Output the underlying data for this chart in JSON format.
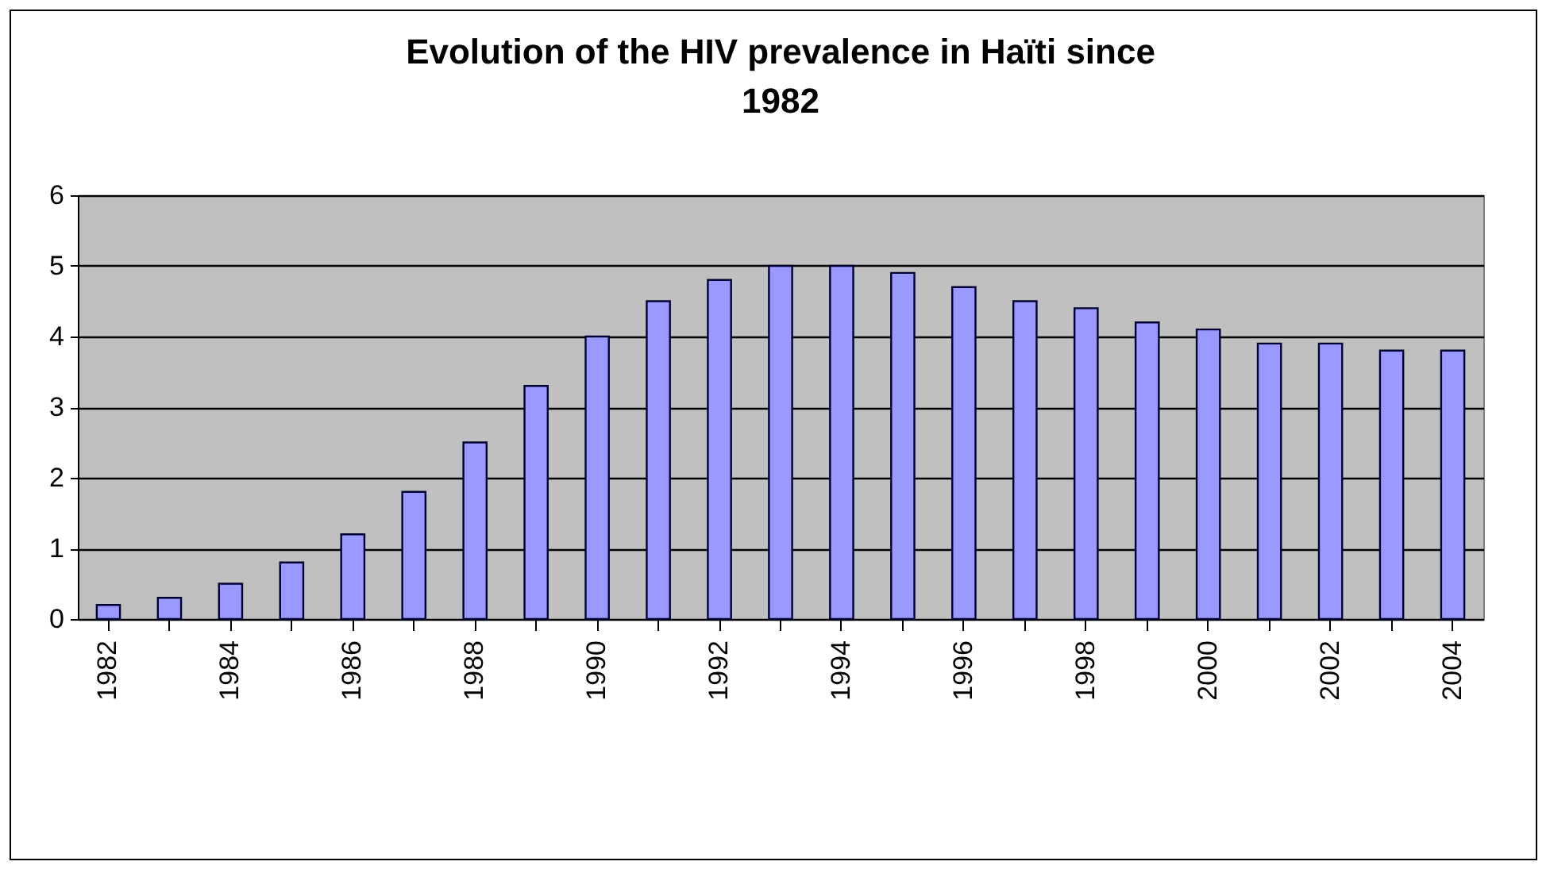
{
  "chart_data": {
    "type": "bar",
    "title": "Evolution of the HIV prevalence in Haïti  since 1982",
    "categories": [
      "1982",
      null,
      "1984",
      null,
      "1986",
      null,
      "1988",
      null,
      "1990",
      null,
      "1992",
      null,
      "1994",
      null,
      "1996",
      null,
      "1998",
      null,
      "2000",
      null,
      "2002",
      null,
      "2004"
    ],
    "values": [
      0.2,
      0.3,
      0.5,
      0.8,
      1.2,
      1.8,
      2.5,
      3.3,
      4.0,
      4.5,
      4.8,
      5.0,
      5.0,
      4.9,
      4.7,
      4.5,
      4.4,
      4.2,
      4.1,
      3.9,
      3.9,
      3.8,
      3.8
    ],
    "color": "#9999ff",
    "ylim": [
      0,
      6
    ],
    "yticks": [
      0,
      1,
      2,
      3,
      4,
      5,
      6
    ],
    "grid": "y"
  }
}
